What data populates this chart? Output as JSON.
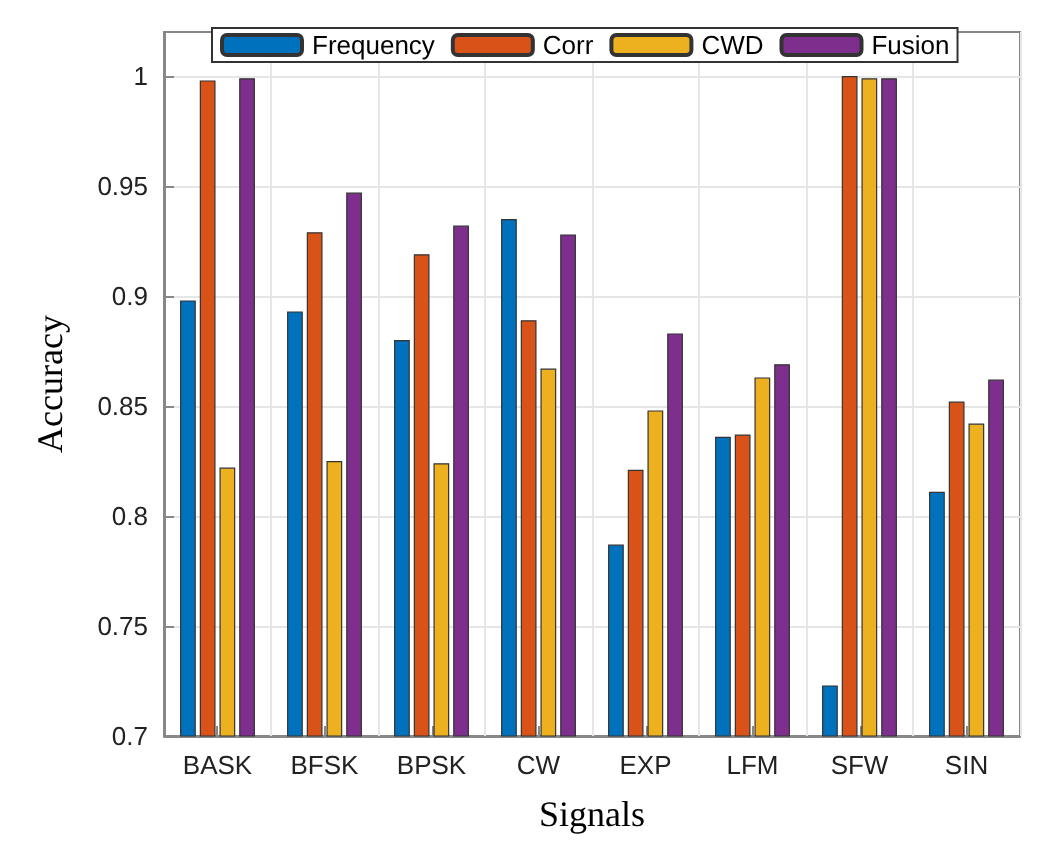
{
  "chart_data": {
    "type": "bar",
    "xlabel": "Signals",
    "ylabel": "Accuracy",
    "categories": [
      "BASK",
      "BFSK",
      "BPSK",
      "CW",
      "EXP",
      "LFM",
      "SFW",
      "SIN"
    ],
    "series": [
      {
        "name": "Frequency",
        "color": "#0072bd",
        "values": [
          0.898,
          0.893,
          0.88,
          0.935,
          0.787,
          0.836,
          0.723,
          0.811
        ]
      },
      {
        "name": "Corr",
        "color": "#d95319",
        "values": [
          0.998,
          0.929,
          0.919,
          0.889,
          0.821,
          0.837,
          1.0,
          0.852
        ]
      },
      {
        "name": "CWD",
        "color": "#edb120",
        "values": [
          0.822,
          0.825,
          0.824,
          0.867,
          0.848,
          0.863,
          0.999,
          0.842
        ]
      },
      {
        "name": "Fusion",
        "color": "#7e2f8e",
        "values": [
          0.999,
          0.947,
          0.932,
          0.928,
          0.883,
          0.869,
          0.999,
          0.862
        ]
      }
    ],
    "ylim": [
      0.7,
      1.02
    ],
    "yticks": [
      0.7,
      0.75,
      0.8,
      0.85,
      0.9,
      0.95,
      1
    ],
    "grid": true,
    "legend": "top"
  }
}
